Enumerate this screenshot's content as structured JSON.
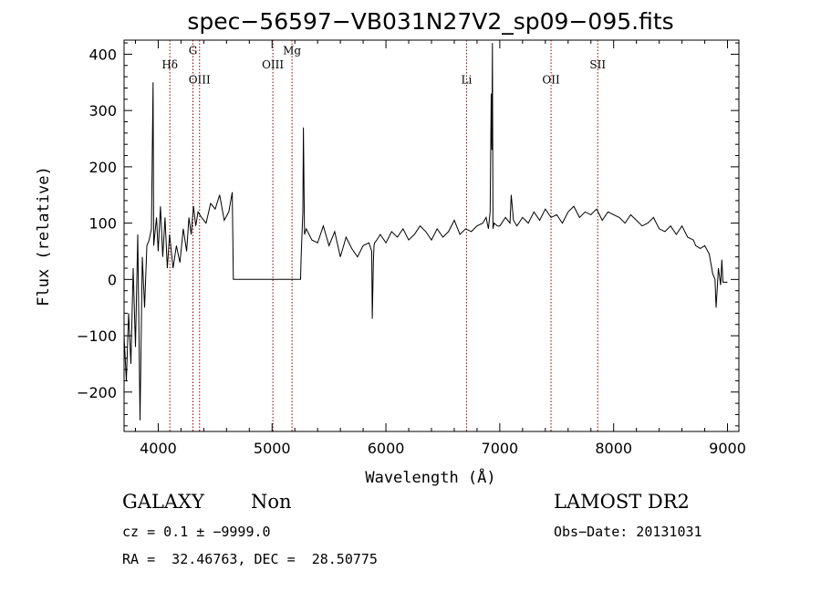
{
  "chart_data": {
    "type": "line",
    "title": "spec−56597−VB031N27V2_sp09−095.fits",
    "xlabel": "Wavelength (Å)",
    "ylabel": "Flux (relative)",
    "xlim": [
      3700,
      9100
    ],
    "ylim": [
      -270,
      425
    ],
    "xticks": [
      4000,
      5000,
      6000,
      7000,
      8000,
      9000
    ],
    "yticks": [
      -200,
      -100,
      0,
      100,
      200,
      300,
      400
    ],
    "ytick_labels": [
      "−200",
      "−100",
      "0",
      "100",
      "200",
      "300",
      "400"
    ],
    "series_color": "#000000",
    "line_marker_color": "#8b0000",
    "spectral_lines": [
      {
        "label": "Hδ",
        "x": 4102,
        "label_y": 375
      },
      {
        "label": "G",
        "x": 4305,
        "label_y": 400
      },
      {
        "label": "OIII",
        "x": 4363,
        "label_y": 348
      },
      {
        "label": "OIII",
        "x": 5007,
        "label_y": 375
      },
      {
        "label": "Mg",
        "x": 5175,
        "label_y": 400
      },
      {
        "label": "Li",
        "x": 6708,
        "label_y": 348
      },
      {
        "label": "OII",
        "x": 7450,
        "label_y": 348
      },
      {
        "label": "SII",
        "x": 7860,
        "label_y": 375
      }
    ],
    "x": [
      3700,
      3720,
      3740,
      3760,
      3780,
      3800,
      3820,
      3840,
      3860,
      3880,
      3900,
      3920,
      3940,
      3955,
      3960,
      3970,
      3985,
      4000,
      4020,
      4040,
      4060,
      4080,
      4100,
      4130,
      4160,
      4190,
      4220,
      4250,
      4270,
      4290,
      4310,
      4330,
      4350,
      4380,
      4420,
      4460,
      4500,
      4540,
      4580,
      4620,
      4650,
      4660,
      5250,
      5255,
      5270,
      5275,
      5285,
      5300,
      5350,
      5400,
      5450,
      5500,
      5550,
      5600,
      5650,
      5700,
      5750,
      5800,
      5850,
      5875,
      5880,
      5890,
      5895,
      5900,
      5920,
      5950,
      6000,
      6050,
      6100,
      6150,
      6200,
      6250,
      6300,
      6350,
      6400,
      6450,
      6500,
      6550,
      6600,
      6650,
      6700,
      6750,
      6800,
      6850,
      6880,
      6900,
      6915,
      6925,
      6930,
      6935,
      6940,
      6950,
      6980,
      7000,
      7050,
      7090,
      7100,
      7120,
      7150,
      7200,
      7250,
      7300,
      7350,
      7400,
      7450,
      7500,
      7550,
      7600,
      7650,
      7700,
      7750,
      7800,
      7850,
      7900,
      7950,
      8000,
      8050,
      8100,
      8150,
      8200,
      8250,
      8300,
      8350,
      8400,
      8450,
      8500,
      8550,
      8600,
      8650,
      8700,
      8720,
      8760,
      8800,
      8840,
      8870,
      8890,
      8900,
      8910,
      8920,
      8930,
      8940,
      8950,
      8960,
      9000
    ],
    "y": [
      -100,
      -180,
      -60,
      -150,
      20,
      -120,
      80,
      -250,
      40,
      -50,
      60,
      70,
      90,
      350,
      60,
      80,
      110,
      50,
      130,
      40,
      110,
      20,
      80,
      20,
      60,
      30,
      90,
      50,
      110,
      80,
      130,
      95,
      120,
      110,
      100,
      135,
      125,
      150,
      105,
      120,
      155,
      0,
      0,
      40,
      120,
      270,
      80,
      90,
      70,
      65,
      95,
      60,
      85,
      40,
      75,
      55,
      40,
      60,
      65,
      50,
      -70,
      30,
      60,
      65,
      70,
      80,
      65,
      85,
      75,
      90,
      70,
      80,
      95,
      85,
      70,
      90,
      75,
      85,
      105,
      80,
      90,
      85,
      95,
      100,
      110,
      90,
      120,
      330,
      230,
      420,
      90,
      100,
      95,
      95,
      110,
      100,
      150,
      105,
      95,
      110,
      100,
      120,
      105,
      125,
      110,
      115,
      100,
      120,
      130,
      110,
      120,
      115,
      125,
      105,
      120,
      115,
      110,
      100,
      115,
      105,
      95,
      100,
      110,
      90,
      85,
      95,
      80,
      95,
      75,
      70,
      60,
      55,
      60,
      45,
      10,
      0,
      -50,
      -15,
      20,
      5,
      -10,
      35,
      -5,
      -5
    ]
  },
  "info": {
    "object_class": "GALAXY",
    "subclass": "Non",
    "survey": "LAMOST DR2",
    "cz_line": "cz = 0.1 ± −9999.0",
    "obs_date": "Obs−Date: 20131031",
    "coords": "RA =  32.46763, DEC =  28.50775"
  }
}
